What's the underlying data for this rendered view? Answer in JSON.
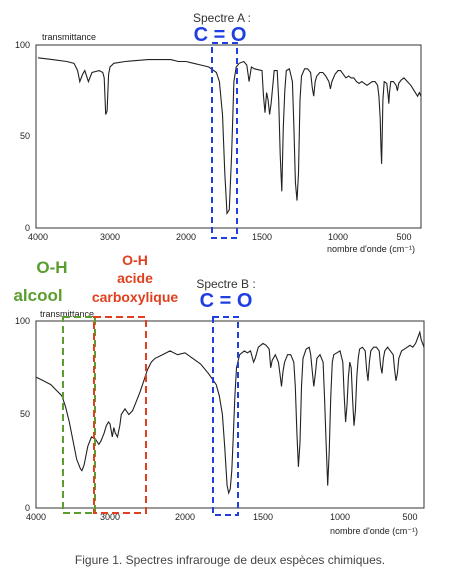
{
  "caption": "Figure 1. Spectres infrarouge de deux espèces chimiques.",
  "colors": {
    "blue": "#1f3fe0",
    "green": "#5a9e2e",
    "red": "#e0401f"
  },
  "chart_data": [
    {
      "type": "line",
      "title": "Spectre A :",
      "ylabel": "transmittance",
      "xlabel": "nombre d'onde (cm⁻¹)",
      "xlim": [
        4000,
        400
      ],
      "ylim": [
        0,
        100
      ],
      "x_ticks": [
        "4000",
        "3000",
        "2000",
        "1500",
        "1000",
        "500"
      ],
      "y_ticks": [
        "100",
        "50",
        "0"
      ],
      "annotations": [
        {
          "label": "C = O",
          "x_range": [
            1800,
            1660
          ]
        }
      ],
      "series": [
        {
          "points": [
            [
              4000,
              93
            ],
            [
              3800,
              92
            ],
            [
              3600,
              91
            ],
            [
              3500,
              90
            ],
            [
              3450,
              86
            ],
            [
              3420,
              80
            ],
            [
              3380,
              84
            ],
            [
              3350,
              86
            ],
            [
              3300,
              80
            ],
            [
              3250,
              85
            ],
            [
              3150,
              86
            ],
            [
              3100,
              85
            ],
            [
              3080,
              82
            ],
            [
              3060,
              62
            ],
            [
              3040,
              64
            ],
            [
              3020,
              84
            ],
            [
              3000,
              88
            ],
            [
              2950,
              90
            ],
            [
              2800,
              91
            ],
            [
              2500,
              92
            ],
            [
              2200,
              92
            ],
            [
              2100,
              91
            ],
            [
              2000,
              91
            ],
            [
              1950,
              90
            ],
            [
              1900,
              89
            ],
            [
              1850,
              88
            ],
            [
              1800,
              85
            ],
            [
              1780,
              80
            ],
            [
              1760,
              62
            ],
            [
              1745,
              30
            ],
            [
              1730,
              8
            ],
            [
              1715,
              10
            ],
            [
              1700,
              40
            ],
            [
              1685,
              80
            ],
            [
              1670,
              88
            ],
            [
              1650,
              90
            ],
            [
              1620,
              91
            ],
            [
              1600,
              89
            ],
            [
              1585,
              80
            ],
            [
              1570,
              88
            ],
            [
              1550,
              87
            ],
            [
              1500,
              86
            ],
            [
              1490,
              72
            ],
            [
              1480,
              63
            ],
            [
              1470,
              74
            ],
            [
              1460,
              70
            ],
            [
              1450,
              62
            ],
            [
              1440,
              68
            ],
            [
              1420,
              86
            ],
            [
              1400,
              86
            ],
            [
              1390,
              70
            ],
            [
              1380,
              40
            ],
            [
              1370,
              20
            ],
            [
              1360,
              55
            ],
            [
              1350,
              75
            ],
            [
              1340,
              86
            ],
            [
              1320,
              87
            ],
            [
              1300,
              80
            ],
            [
              1290,
              55
            ],
            [
              1280,
              25
            ],
            [
              1270,
              15
            ],
            [
              1260,
              30
            ],
            [
              1250,
              70
            ],
            [
              1240,
              83
            ],
            [
              1220,
              87
            ],
            [
              1200,
              87
            ],
            [
              1180,
              85
            ],
            [
              1170,
              77
            ],
            [
              1160,
              72
            ],
            [
              1150,
              80
            ],
            [
              1140,
              83
            ],
            [
              1120,
              85
            ],
            [
              1100,
              85
            ],
            [
              1080,
              83
            ],
            [
              1060,
              80
            ],
            [
              1050,
              76
            ],
            [
              1040,
              80
            ],
            [
              1020,
              84
            ],
            [
              1000,
              86
            ],
            [
              980,
              86
            ],
            [
              960,
              84
            ],
            [
              940,
              82
            ],
            [
              920,
              83
            ],
            [
              900,
              82
            ],
            [
              880,
              82
            ],
            [
              860,
              80
            ],
            [
              840,
              79
            ],
            [
              820,
              80
            ],
            [
              800,
              79
            ],
            [
              780,
              78
            ],
            [
              760,
              79
            ],
            [
              740,
              80
            ],
            [
              720,
              80
            ],
            [
              700,
              78
            ],
            [
              690,
              72
            ],
            [
              680,
              60
            ],
            [
              675,
              45
            ],
            [
              670,
              35
            ],
            [
              665,
              50
            ],
            [
              660,
              70
            ],
            [
              650,
              80
            ],
            [
              630,
              79
            ],
            [
              620,
              72
            ],
            [
              615,
              68
            ],
            [
              610,
              74
            ],
            [
              600,
              80
            ],
            [
              580,
              80
            ],
            [
              560,
              78
            ],
            [
              550,
              75
            ],
            [
              540,
              79
            ],
            [
              520,
              81
            ],
            [
              500,
              82
            ],
            [
              480,
              80
            ],
            [
              460,
              78
            ],
            [
              440,
              75
            ],
            [
              420,
              72
            ],
            [
              410,
              74
            ],
            [
              400,
              72
            ]
          ]
        }
      ]
    },
    {
      "type": "line",
      "title": "Spectre B :",
      "ylabel": "transmittance",
      "xlabel": "nombre d'onde (cm⁻¹)",
      "xlim": [
        4000,
        400
      ],
      "ylim": [
        0,
        100
      ],
      "x_ticks": [
        "4000",
        "3000",
        "2000",
        "1500",
        "1000",
        "500"
      ],
      "y_ticks": [
        "100",
        "50",
        "0"
      ],
      "annotations": [
        {
          "label": "C = O",
          "x_range": [
            1800,
            1660
          ]
        },
        {
          "label": "O-H",
          "label2": "alcool",
          "x_range": [
            3700,
            3230
          ]
        },
        {
          "label": "O-H",
          "label2": "acide",
          "label3": "carboxylique",
          "x_range": [
            3250,
            2520
          ]
        }
      ],
      "series": [
        {
          "points": [
            [
              4000,
              70
            ],
            [
              3900,
              68
            ],
            [
              3800,
              66
            ],
            [
              3700,
              62
            ],
            [
              3650,
              60
            ],
            [
              3600,
              54
            ],
            [
              3550,
              46
            ],
            [
              3500,
              36
            ],
            [
              3450,
              26
            ],
            [
              3400,
              21
            ],
            [
              3380,
              20
            ],
            [
              3350,
              23
            ],
            [
              3300,
              33
            ],
            [
              3250,
              38
            ],
            [
              3200,
              37
            ],
            [
              3150,
              34
            ],
            [
              3120,
              36
            ],
            [
              3080,
              40
            ],
            [
              3050,
              44
            ],
            [
              3020,
              46
            ],
            [
              3000,
              45
            ],
            [
              2970,
              38
            ],
            [
              2950,
              43
            ],
            [
              2930,
              40
            ],
            [
              2900,
              38
            ],
            [
              2870,
              44
            ],
            [
              2850,
              50
            ],
            [
              2800,
              53
            ],
            [
              2750,
              50
            ],
            [
              2700,
              52
            ],
            [
              2650,
              57
            ],
            [
              2600,
              62
            ],
            [
              2550,
              68
            ],
            [
              2500,
              74
            ],
            [
              2450,
              78
            ],
            [
              2400,
              80
            ],
            [
              2300,
              82
            ],
            [
              2200,
              84
            ],
            [
              2100,
              82
            ],
            [
              2000,
              83
            ],
            [
              1950,
              80
            ],
            [
              1900,
              77
            ],
            [
              1850,
              72
            ],
            [
              1800,
              66
            ],
            [
              1780,
              60
            ],
            [
              1760,
              50
            ],
            [
              1745,
              32
            ],
            [
              1730,
              12
            ],
            [
              1720,
              8
            ],
            [
              1710,
              10
            ],
            [
              1700,
              20
            ],
            [
              1690,
              40
            ],
            [
              1680,
              60
            ],
            [
              1670,
              75
            ],
            [
              1650,
              82
            ],
            [
              1620,
              84
            ],
            [
              1600,
              83
            ],
            [
              1580,
              84
            ],
            [
              1560,
              78
            ],
            [
              1550,
              80
            ],
            [
              1530,
              86
            ],
            [
              1500,
              88
            ],
            [
              1480,
              87
            ],
            [
              1460,
              85
            ],
            [
              1450,
              75
            ],
            [
              1440,
              79
            ],
            [
              1420,
              82
            ],
            [
              1400,
              78
            ],
            [
              1390,
              72
            ],
            [
              1380,
              65
            ],
            [
              1370,
              73
            ],
            [
              1360,
              78
            ],
            [
              1340,
              82
            ],
            [
              1320,
              82
            ],
            [
              1300,
              78
            ],
            [
              1290,
              65
            ],
            [
              1280,
              40
            ],
            [
              1270,
              22
            ],
            [
              1260,
              35
            ],
            [
              1250,
              65
            ],
            [
              1240,
              80
            ],
            [
              1220,
              85
            ],
            [
              1200,
              86
            ],
            [
              1190,
              82
            ],
            [
              1180,
              73
            ],
            [
              1170,
              65
            ],
            [
              1160,
              72
            ],
            [
              1150,
              80
            ],
            [
              1130,
              82
            ],
            [
              1110,
              78
            ],
            [
              1100,
              58
            ],
            [
              1090,
              35
            ],
            [
              1080,
              12
            ],
            [
              1070,
              30
            ],
            [
              1060,
              60
            ],
            [
              1050,
              78
            ],
            [
              1040,
              82
            ],
            [
              1020,
              83
            ],
            [
              1000,
              84
            ],
            [
              980,
              78
            ],
            [
              970,
              60
            ],
            [
              960,
              46
            ],
            [
              950,
              55
            ],
            [
              940,
              70
            ],
            [
              930,
              78
            ],
            [
              920,
              75
            ],
            [
              910,
              58
            ],
            [
              900,
              44
            ],
            [
              890,
              52
            ],
            [
              880,
              70
            ],
            [
              870,
              80
            ],
            [
              860,
              85
            ],
            [
              840,
              86
            ],
            [
              820,
              84
            ],
            [
              810,
              74
            ],
            [
              800,
              68
            ],
            [
              790,
              78
            ],
            [
              780,
              84
            ],
            [
              760,
              86
            ],
            [
              740,
              86
            ],
            [
              720,
              84
            ],
            [
              710,
              76
            ],
            [
              700,
              72
            ],
            [
              690,
              80
            ],
            [
              680,
              84
            ],
            [
              660,
              86
            ],
            [
              640,
              84
            ],
            [
              620,
              82
            ],
            [
              610,
              74
            ],
            [
              600,
              68
            ],
            [
              590,
              72
            ],
            [
              580,
              80
            ],
            [
              560,
              84
            ],
            [
              540,
              85
            ],
            [
              520,
              86
            ],
            [
              500,
              87
            ],
            [
              480,
              86
            ],
            [
              460,
              88
            ],
            [
              440,
              92
            ],
            [
              430,
              94
            ],
            [
              420,
              90
            ],
            [
              410,
              88
            ],
            [
              400,
              86
            ]
          ]
        }
      ]
    }
  ]
}
